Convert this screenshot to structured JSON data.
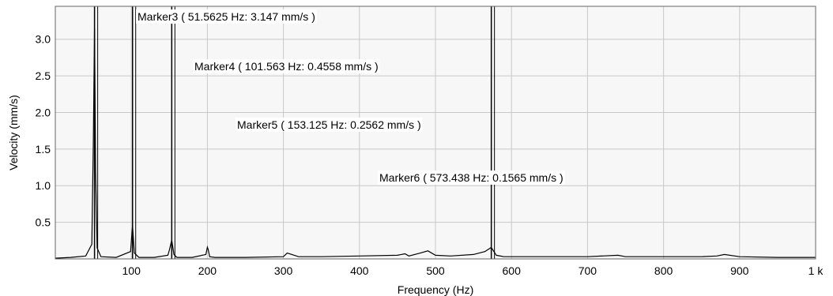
{
  "chart_data": {
    "type": "line",
    "xlabel": "Frequency (Hz)",
    "ylabel": "Velocity (mm/s)",
    "xlim": [
      0,
      1000
    ],
    "ylim": [
      0,
      3.45
    ],
    "x_ticks": [
      100,
      200,
      300,
      400,
      500,
      600,
      700,
      800,
      900,
      1000
    ],
    "x_tick_labels": [
      "100",
      "200",
      "300",
      "400",
      "500",
      "600",
      "700",
      "800",
      "900",
      "1 k"
    ],
    "y_ticks": [
      0.5,
      1.0,
      1.5,
      2.0,
      2.5,
      3.0
    ],
    "y_tick_labels": [
      "0.5",
      "1.0",
      "1.5",
      "2.0",
      "2.5",
      "3.0"
    ],
    "grid": true,
    "series": [
      {
        "x": [
          0,
          20,
          40,
          48,
          50,
          51.5625,
          53,
          55,
          60,
          80,
          99,
          101.563,
          104,
          110,
          130,
          148,
          150,
          153.125,
          156,
          160,
          180,
          198,
          200,
          201,
          203,
          210,
          250,
          300,
          305,
          320,
          350,
          400,
          450,
          460,
          465,
          480,
          490,
          500,
          520,
          550,
          565,
          573.438,
          580,
          590,
          600,
          650,
          700,
          740,
          750,
          800,
          850,
          870,
          880,
          900,
          950,
          1000
        ],
        "y": [
          0.01,
          0.02,
          0.04,
          0.2,
          1.6,
          3.147,
          1.2,
          0.15,
          0.03,
          0.02,
          0.1,
          0.4558,
          0.08,
          0.02,
          0.02,
          0.05,
          0.12,
          0.2562,
          0.06,
          0.02,
          0.02,
          0.06,
          0.16,
          0.13,
          0.03,
          0.02,
          0.02,
          0.03,
          0.08,
          0.03,
          0.03,
          0.04,
          0.05,
          0.07,
          0.04,
          0.08,
          0.11,
          0.05,
          0.04,
          0.06,
          0.1,
          0.1565,
          0.05,
          0.03,
          0.03,
          0.03,
          0.03,
          0.05,
          0.03,
          0.03,
          0.03,
          0.04,
          0.06,
          0.03,
          0.02,
          0.02
        ]
      }
    ],
    "markers": [
      {
        "label": "Marker3 ( 51.5625 Hz:  3.147 mm/s )",
        "x": 51.5625,
        "y": 3.147
      },
      {
        "label": "Marker4 ( 101.563 Hz:  0.4558 mm/s )",
        "x": 101.563,
        "y": 0.4558
      },
      {
        "label": "Marker5 ( 153.125 Hz:  0.2562 mm/s )",
        "x": 153.125,
        "y": 0.2562
      },
      {
        "label": "Marker6 ( 573.438 Hz:  0.1565 mm/s )",
        "x": 573.438,
        "y": 0.1565
      }
    ]
  }
}
